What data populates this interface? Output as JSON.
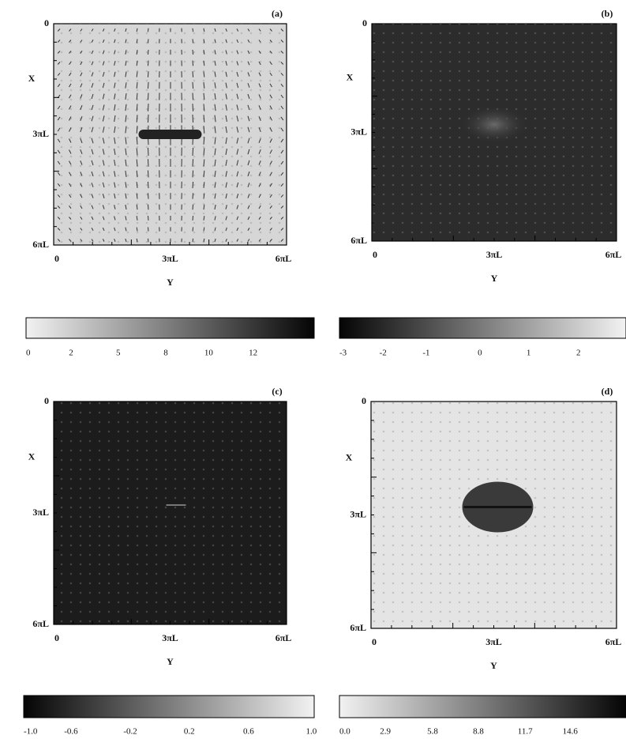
{
  "panels": [
    {
      "label": "(a)",
      "left_axis_label": "X",
      "bottom_axis_label": "Y",
      "left_ticks": [
        "0",
        "3πL",
        "6πL"
      ],
      "bottom_ticks": [
        "0",
        "3πL",
        "6πL"
      ],
      "colorbar_ticks": [
        "0",
        "2",
        "5",
        "8",
        "10",
        "12"
      ]
    },
    {
      "label": "(b)",
      "left_axis_label": "X",
      "bottom_axis_label": "Y",
      "left_ticks": [
        "0",
        "3πL",
        "6πL"
      ],
      "bottom_ticks": [
        "0",
        "3πL",
        "6πL"
      ],
      "colorbar_ticks": [
        "-3",
        "-2",
        "-1",
        "0",
        "1",
        "2"
      ]
    },
    {
      "label": "(c)",
      "left_axis_label": "X",
      "bottom_axis_label": "Y",
      "left_ticks": [
        "0",
        "3πL",
        "6πL"
      ],
      "bottom_ticks": [
        "0",
        "3πL",
        "6πL"
      ],
      "colorbar_ticks": [
        "-1.0",
        "-0.6",
        "-0.2",
        "0.2",
        "0.6",
        "1.0"
      ]
    },
    {
      "label": "(d)",
      "left_axis_label": "X",
      "bottom_axis_label": "Y",
      "left_ticks": [
        "0",
        "3πL",
        "6πL"
      ],
      "bottom_ticks": [
        "0",
        "3πL",
        "6πL"
      ],
      "colorbar_ticks": [
        "0.0",
        "2.9",
        "5.8",
        "8.8",
        "11.7",
        "14.6"
      ]
    }
  ]
}
